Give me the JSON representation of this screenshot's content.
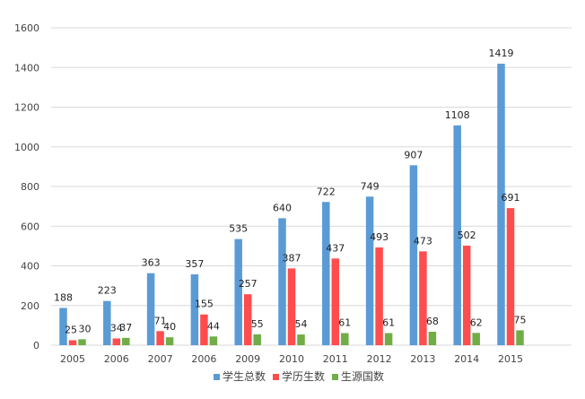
{
  "chart_data": {
    "type": "bar",
    "title": "",
    "xlabel": "",
    "ylabel": "",
    "ylim": [
      0,
      1600
    ],
    "yticks": [
      0,
      200,
      400,
      600,
      800,
      1000,
      1200,
      1400,
      1600
    ],
    "grid": true,
    "legend_position": "bottom",
    "categories": [
      "2005",
      "2006",
      "2007",
      "2006",
      "2009",
      "2010",
      "2011",
      "2012",
      "2013",
      "2014",
      "2015"
    ],
    "series": [
      {
        "name": "学生总数",
        "color": "#5b9bd5",
        "values": [
          188,
          223,
          363,
          357,
          535,
          640,
          722,
          749,
          907,
          1108,
          1419
        ]
      },
      {
        "name": "学历生数",
        "color": "#ff4d4d",
        "values": [
          25,
          34,
          71,
          155,
          257,
          387,
          437,
          493,
          473,
          502,
          691
        ]
      },
      {
        "name": "生源国数",
        "color": "#70ad47",
        "values": [
          30,
          37,
          40,
          44,
          55,
          54,
          61,
          61,
          68,
          62,
          75
        ]
      }
    ]
  }
}
